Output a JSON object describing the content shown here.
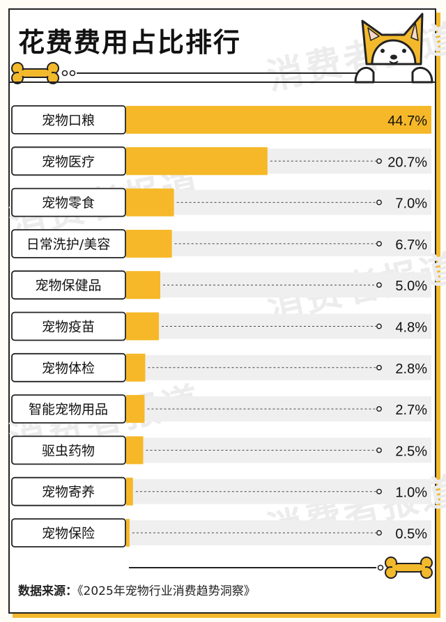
{
  "title": "花费费用占比排行",
  "watermark": "消费者报道",
  "colors": {
    "bar": "#f6b828",
    "track": "#efefef",
    "border": "#222222",
    "accent": "#f3b92c"
  },
  "chart_data": {
    "type": "bar",
    "orientation": "horizontal",
    "unit": "%",
    "categories": [
      "宠物口粮",
      "宠物医疗",
      "宠物零食",
      "日常洗护/美容",
      "宠物保健品",
      "宠物疫苗",
      "宠物体检",
      "智能宠物用品",
      "驱虫药物",
      "宠物寄养",
      "宠物保险"
    ],
    "values": [
      44.7,
      20.7,
      7.0,
      6.7,
      5.0,
      4.8,
      2.8,
      2.7,
      2.5,
      1.0,
      0.5
    ],
    "value_labels": [
      "44.7%",
      "20.7%",
      "7.0%",
      "6.7%",
      "5.0%",
      "4.8%",
      "2.8%",
      "2.7%",
      "2.5%",
      "1.0%",
      "0.5%"
    ],
    "xlim": [
      0,
      44.7
    ]
  },
  "source": {
    "label": "数据来源：",
    "text": "《2025年宠物行业消费趋势洞察》"
  },
  "icons": [
    "bone-icon",
    "dog-icon"
  ]
}
